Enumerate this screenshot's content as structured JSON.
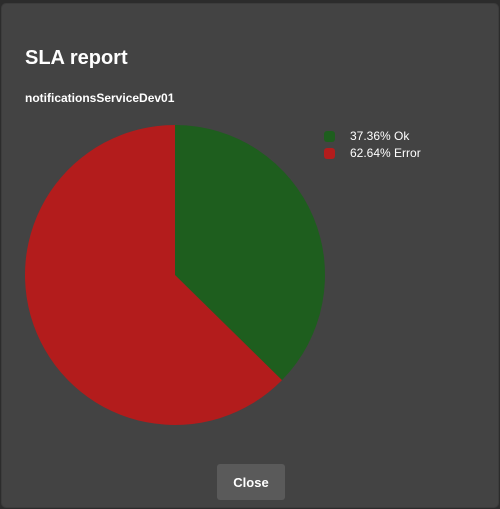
{
  "dialog": {
    "title": "SLA report",
    "subtitle": "notificationsServiceDev01",
    "close_label": "Close"
  },
  "colors": {
    "ok": "#1e5e1e",
    "error": "#b31c1c"
  },
  "chart_data": {
    "type": "pie",
    "categories": [
      "Ok",
      "Error"
    ],
    "values": [
      37.36,
      62.64
    ],
    "legend_labels": [
      "37.36% Ok",
      "62.64% Error"
    ],
    "colors": [
      "#1e5e1e",
      "#b31c1c"
    ],
    "legend_position": "top-right",
    "start_angle_deg": 0,
    "direction": "clockwise"
  }
}
